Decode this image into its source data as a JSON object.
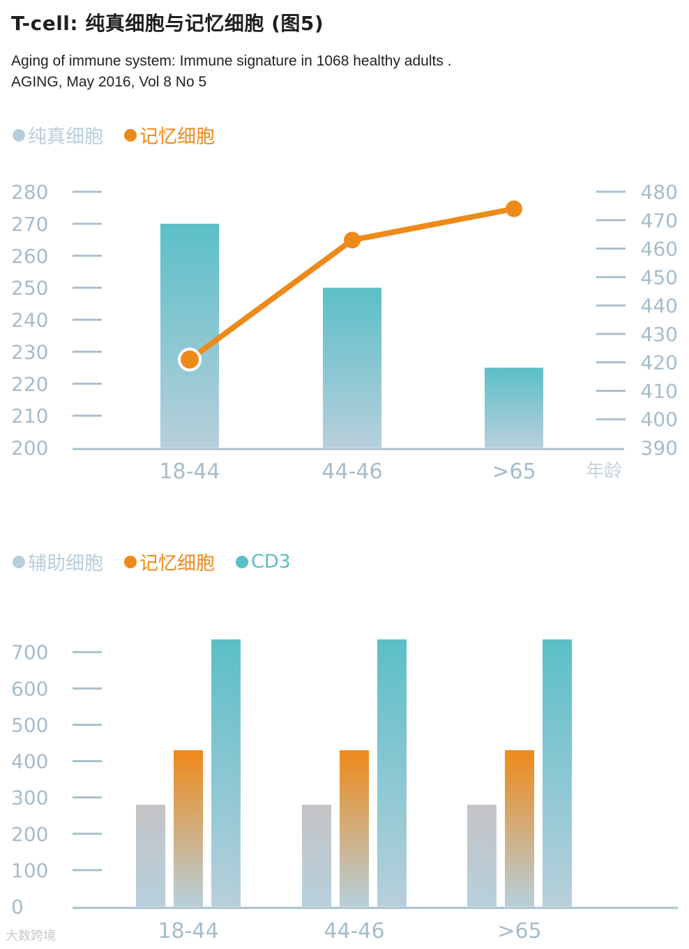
{
  "header": {
    "title": "T-cell: 纯真细胞与记忆细胞 (图5)",
    "reference_line1": "Aging of immune system: Immune signature in 1068 healthy adults .",
    "reference_line2": "AGING, May 2016, Vol 8 No 5"
  },
  "colors": {
    "naive": "#b7cfdb",
    "memory": "#ee8a1a",
    "cd3": "#5bbfc8",
    "helper": "#c4c4c6",
    "axis": "#a9c0cd",
    "tick_text": "#a5bccb"
  },
  "chart_data": [
    {
      "type": "bar",
      "legend": [
        "纯真细胞",
        "记忆细胞"
      ],
      "categories": [
        "18-44",
        "44-46",
        ">65"
      ],
      "xlabel": "年龄",
      "series": [
        {
          "name": "纯真细胞",
          "type": "bar",
          "axis": "left",
          "values": [
            270,
            250,
            225
          ]
        },
        {
          "name": "记忆细胞",
          "type": "line",
          "axis": "right",
          "values": [
            421,
            463,
            474
          ]
        }
      ],
      "yticks_left": [
        "200",
        "210",
        "220",
        "230",
        "240",
        "250",
        "260",
        "270",
        "280"
      ],
      "yticks_right": [
        "390",
        "400",
        "410",
        "420",
        "430",
        "440",
        "450",
        "460",
        "470",
        "480"
      ],
      "ylim_left": [
        200,
        280
      ],
      "ylim_right": [
        390,
        480
      ]
    },
    {
      "type": "bar",
      "legend": [
        "辅助细胞",
        "记忆细胞",
        "CD3"
      ],
      "categories": [
        "18-44",
        "44-46",
        ">65"
      ],
      "series": [
        {
          "name": "辅助细胞",
          "values": [
            280,
            280,
            280
          ]
        },
        {
          "name": "记忆细胞",
          "values": [
            430,
            430,
            430
          ]
        },
        {
          "name": "CD3",
          "values": [
            735,
            735,
            735
          ]
        }
      ],
      "yticks": [
        "0",
        "100",
        "200",
        "300",
        "400",
        "500",
        "600",
        "700"
      ],
      "ylim": [
        0,
        735
      ]
    }
  ],
  "watermark": "大数跨境"
}
